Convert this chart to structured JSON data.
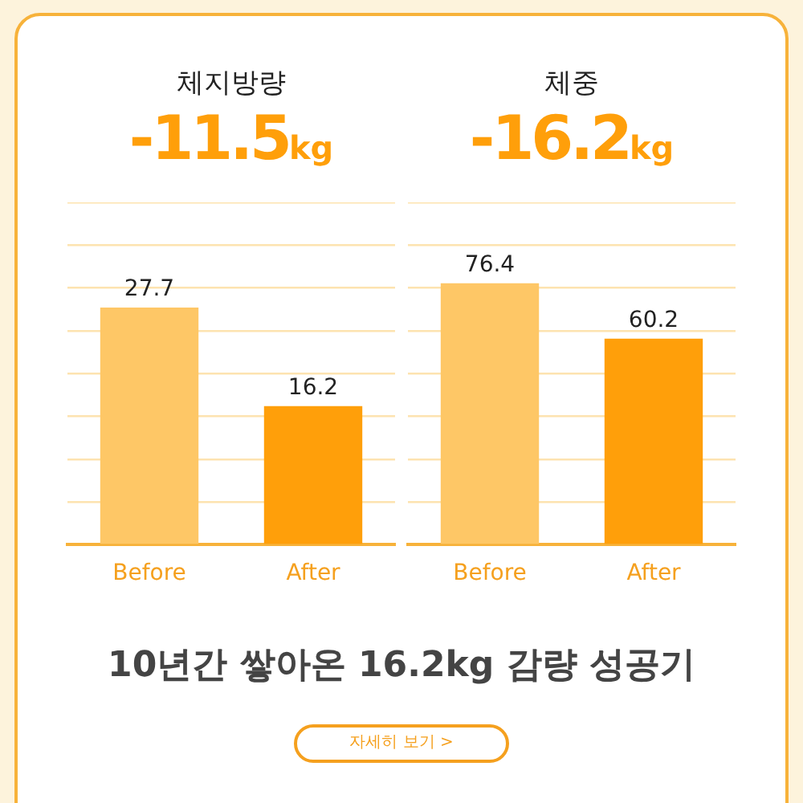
{
  "chart_data": [
    {
      "type": "bar",
      "title": "체지방량",
      "subtitle": "-11.5kg",
      "categories": [
        "Before",
        "After"
      ],
      "values": [
        27.7,
        16.2
      ],
      "colors": [
        "#fec766",
        "#ff9f0a"
      ],
      "ylim": [
        0,
        40
      ],
      "yticks": [
        {
          "value": 0,
          "label": null
        },
        {
          "value": 5,
          "label": null
        },
        {
          "value": 10,
          "label": null
        },
        {
          "value": 15,
          "label": null
        },
        {
          "value": 20,
          "label": null
        },
        {
          "value": 25,
          "label": null
        },
        {
          "value": 30,
          "label": null
        },
        {
          "value": 35,
          "label": null
        },
        {
          "value": 40,
          "label": null
        }
      ],
      "grid": "y",
      "tick_labels": "x",
      "data_labels": true,
      "legend": false
    },
    {
      "type": "bar",
      "title": "체중",
      "subtitle": "-16.2kg",
      "categories": [
        "Before",
        "After"
      ],
      "values": [
        76.4,
        60.2
      ],
      "colors": [
        "#fec766",
        "#ff9f0a"
      ],
      "ylim": [
        0,
        100
      ],
      "yticks": [
        {
          "value": 0,
          "label": null
        },
        {
          "value": 12.5,
          "label": null
        },
        {
          "value": 25,
          "label": null
        },
        {
          "value": 37.5,
          "label": null
        },
        {
          "value": 50,
          "label": null
        },
        {
          "value": 62.5,
          "label": null
        },
        {
          "value": 75,
          "label": null
        },
        {
          "value": 87.5,
          "label": null
        },
        {
          "value": 100,
          "label": null
        }
      ],
      "grid": "y",
      "tick_labels": "x",
      "data_labels": true,
      "legend": false
    },
    {
      "type": "other",
      "title": "10년간 쌓아온 16.2kg 감량 성공기",
      "annotations": [
        "자세히 보기 >"
      ]
    }
  ]
}
